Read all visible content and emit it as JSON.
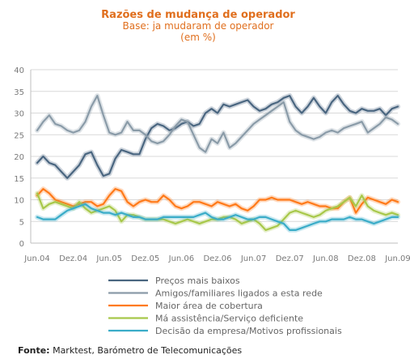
{
  "chart_data": {
    "type": "line",
    "title": "Razões de mudança de operador",
    "subtitle": "Base: ja mudaram de operador",
    "unit_note": "(em %)",
    "ylim": [
      0,
      40
    ],
    "y_ticks": [
      "0",
      "5",
      "10",
      "15",
      "20",
      "25",
      "30",
      "35",
      "40"
    ],
    "x_tick_labels": [
      "Jun.04",
      "Dez.04",
      "Jun.05",
      "Dez.05",
      "Jun.06",
      "Dez.06",
      "Jun.07",
      "Dez.07",
      "Jun.08",
      "Dez.08",
      "Jun.09"
    ],
    "x_count": 61,
    "grid": true,
    "legend_position": "bottom",
    "series": [
      {
        "name": "Preços mais baixos",
        "color": "#4a6680",
        "values": [
          18.5,
          20.0,
          18.5,
          18.0,
          16.5,
          15.0,
          16.5,
          18.0,
          20.5,
          21.0,
          18.0,
          15.5,
          16.0,
          19.5,
          21.5,
          21.0,
          20.5,
          20.5,
          24.0,
          26.5,
          27.5,
          27.0,
          26.0,
          26.5,
          27.5,
          28.0,
          27.0,
          27.5,
          30.0,
          31.0,
          30.0,
          32.0,
          31.5,
          32.0,
          32.5,
          33.0,
          31.5,
          30.5,
          31.0,
          32.0,
          32.5,
          33.5,
          34.0,
          31.5,
          30.0,
          31.5,
          33.5,
          31.5,
          30.0,
          32.5,
          34.0,
          32.0,
          30.5,
          30.0,
          31.0,
          30.5,
          30.5,
          31.0,
          29.5,
          31.0,
          31.5
        ]
      },
      {
        "name": "Amigos/familiares ligados a esta rede",
        "color": "#8a9ba8",
        "values": [
          26.0,
          28.0,
          29.5,
          27.5,
          27.0,
          26.0,
          25.5,
          26.0,
          28.0,
          31.5,
          34.0,
          29.5,
          25.5,
          25.0,
          25.5,
          28.0,
          26.0,
          26.0,
          25.0,
          23.5,
          23.0,
          23.5,
          25.0,
          27.0,
          28.5,
          28.0,
          25.0,
          22.0,
          21.0,
          24.0,
          23.0,
          25.5,
          22.0,
          23.0,
          24.5,
          26.0,
          27.5,
          28.5,
          29.5,
          30.5,
          31.5,
          32.5,
          28.0,
          26.0,
          25.0,
          24.5,
          24.0,
          24.5,
          25.5,
          26.0,
          25.5,
          26.5,
          27.0,
          27.5,
          28.0,
          25.5,
          26.5,
          27.5,
          29.0,
          28.5,
          27.5
        ]
      },
      {
        "name": "Maior área de cobertura",
        "color": "#ff7a1a",
        "values": [
          11.0,
          12.5,
          11.5,
          10.0,
          9.5,
          9.0,
          8.5,
          9.0,
          9.5,
          9.5,
          8.5,
          9.0,
          11.0,
          12.5,
          12.0,
          9.5,
          8.5,
          9.5,
          10.0,
          9.5,
          9.5,
          11.0,
          10.0,
          8.5,
          8.0,
          8.5,
          9.5,
          9.5,
          9.0,
          8.5,
          9.5,
          9.0,
          8.5,
          9.0,
          8.0,
          7.5,
          8.5,
          10.0,
          10.0,
          10.5,
          10.0,
          10.0,
          10.0,
          9.5,
          9.0,
          9.5,
          9.0,
          8.5,
          8.5,
          8.0,
          8.0,
          9.5,
          10.5,
          7.0,
          9.0,
          10.5,
          10.0,
          9.5,
          9.0,
          10.0,
          9.5
        ]
      },
      {
        "name": "Má assistência/Serviço deficiente",
        "color": "#a8c84a",
        "values": [
          11.5,
          8.0,
          9.0,
          9.5,
          9.0,
          8.5,
          8.0,
          9.5,
          8.0,
          7.0,
          7.5,
          8.0,
          8.5,
          7.5,
          5.0,
          6.5,
          6.5,
          6.0,
          5.5,
          5.5,
          5.5,
          5.5,
          5.0,
          4.5,
          5.0,
          5.5,
          5.0,
          4.5,
          5.0,
          5.5,
          5.5,
          6.0,
          6.0,
          5.5,
          4.5,
          5.0,
          5.5,
          4.5,
          3.0,
          3.5,
          4.0,
          5.5,
          7.0,
          7.5,
          7.0,
          6.5,
          6.0,
          6.5,
          7.5,
          8.0,
          8.5,
          9.5,
          10.5,
          8.5,
          11.0,
          8.5,
          7.5,
          7.0,
          6.5,
          7.0,
          6.5
        ]
      },
      {
        "name": "Decisão da empresa/Motivos profissionais",
        "color": "#3aacc8",
        "values": [
          6.0,
          5.5,
          5.5,
          5.5,
          6.5,
          7.5,
          8.0,
          8.5,
          9.0,
          8.0,
          7.5,
          7.0,
          7.0,
          6.5,
          7.0,
          6.5,
          6.0,
          6.0,
          5.5,
          5.5,
          5.5,
          6.0,
          6.0,
          6.0,
          6.0,
          6.0,
          6.0,
          6.5,
          7.0,
          6.0,
          5.5,
          5.5,
          6.0,
          6.5,
          6.0,
          5.5,
          5.5,
          6.0,
          6.0,
          5.5,
          5.0,
          4.5,
          3.0,
          3.0,
          3.5,
          4.0,
          4.5,
          5.0,
          5.0,
          5.5,
          5.5,
          5.5,
          6.0,
          5.5,
          5.5,
          5.0,
          4.5,
          5.0,
          5.5,
          6.0,
          6.0
        ]
      }
    ]
  },
  "source": {
    "label": "Fonte:",
    "text": " Marktest, Barómetro de Telecomunicações"
  }
}
